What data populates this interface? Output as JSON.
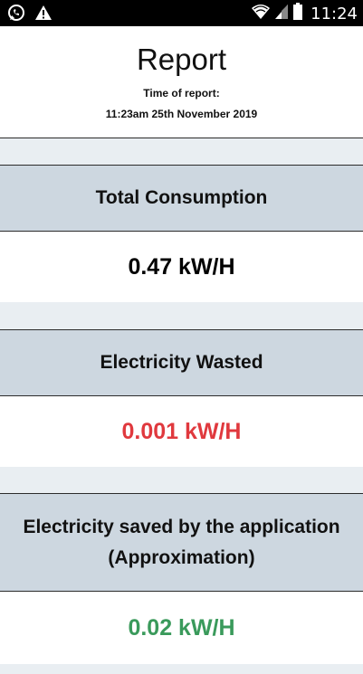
{
  "status_bar": {
    "time": "11:24",
    "icons": [
      "whatsapp-icon",
      "warning-icon",
      "wifi-icon",
      "signal-icon",
      "battery-icon"
    ]
  },
  "header": {
    "title": "Report",
    "subtitle": "Time of report:",
    "timestamp": "11:23am 25th November 2019"
  },
  "cards": [
    {
      "label": "Total Consumption",
      "value": "0.47 kW/H",
      "color": "#000000"
    },
    {
      "label": "Electricity Wasted",
      "value": "0.001 kW/H",
      "color": "#e0393e"
    },
    {
      "label_line1": "Electricity saved by the application",
      "label_line2": "(Approximation)",
      "value": "0.02 kW/H",
      "color": "#3a9a5b"
    }
  ]
}
